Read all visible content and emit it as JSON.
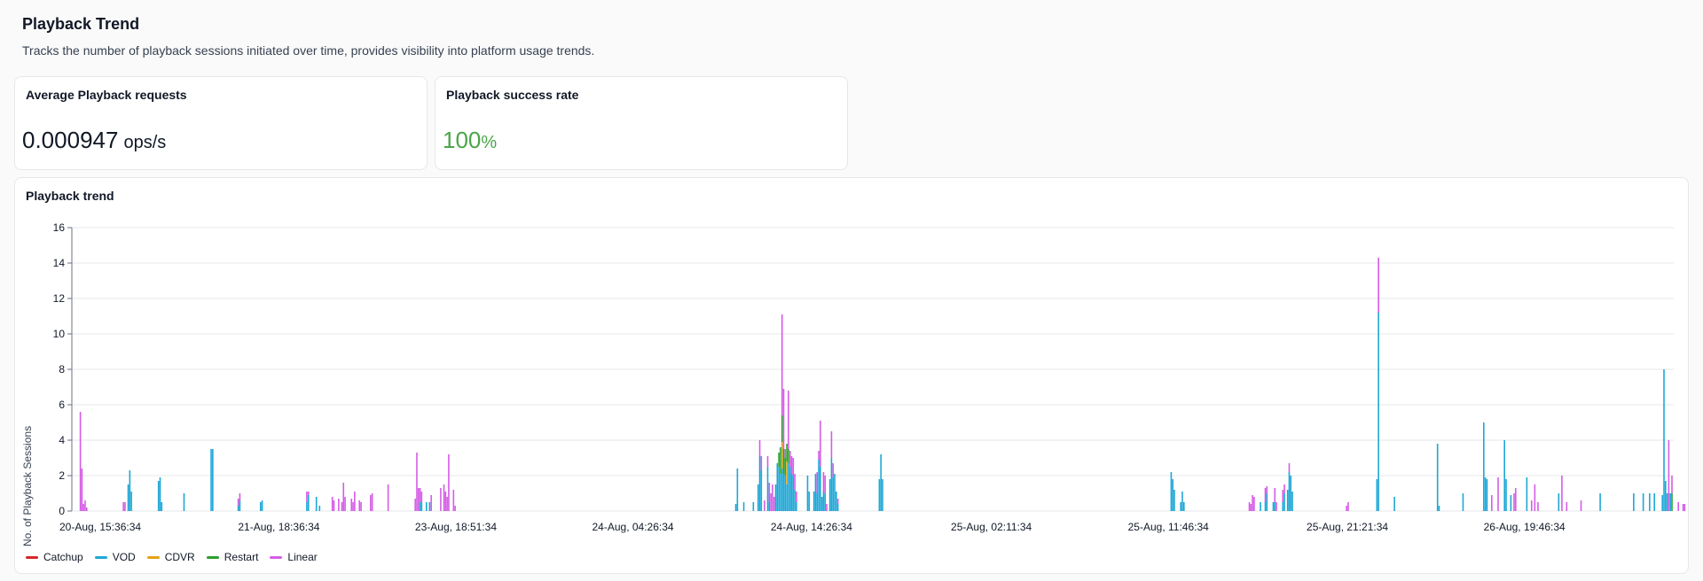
{
  "header": {
    "title": "Playback Trend",
    "subtitle": "Tracks the number of playback sessions initiated over time, provides visibility into platform usage trends."
  },
  "cards": {
    "avg": {
      "title": "Average Playback requests",
      "value": "0.000947",
      "unit": "ops/s"
    },
    "success": {
      "title": "Playback success rate",
      "value": "100",
      "unit": "%"
    }
  },
  "chart_card": {
    "title": "Playback trend"
  },
  "chart_data": {
    "type": "bar",
    "stacked": true,
    "ylabel": "No. of Playback Sessions",
    "xlabel": "",
    "ylim": [
      0,
      16
    ],
    "yticks": [
      0,
      2,
      4,
      6,
      8,
      10,
      12,
      14,
      16
    ],
    "xlim": [
      0,
      1000
    ],
    "grid": true,
    "legend": "bottom-left",
    "x_tick_labels": [
      {
        "x": 10,
        "label": "20-Aug, 15:36:34"
      },
      {
        "x": 122,
        "label": "21-Aug, 18:36:34"
      },
      {
        "x": 233,
        "label": "23-Aug, 18:51:34"
      },
      {
        "x": 344,
        "label": "24-Aug, 04:26:34"
      },
      {
        "x": 456,
        "label": "24-Aug, 14:26:34"
      },
      {
        "x": 569,
        "label": "25-Aug, 02:11:34"
      },
      {
        "x": 680,
        "label": "25-Aug, 11:46:34"
      },
      {
        "x": 792,
        "label": "25-Aug, 21:21:34"
      },
      {
        "x": 903,
        "label": "26-Aug, 19:46:34"
      }
    ],
    "series": [
      {
        "name": "Catchup",
        "color": "#d62728",
        "points": []
      },
      {
        "name": "VOD",
        "color": "#1ea7d6",
        "points": [
          [
            32,
            1.5
          ],
          [
            33,
            2.3
          ],
          [
            34,
            1.1
          ],
          [
            51,
            1.7
          ],
          [
            52,
            1.9
          ],
          [
            53,
            0.5
          ],
          [
            67,
            1.0
          ],
          [
            84,
            3.5
          ],
          [
            85,
            3.5
          ],
          [
            101,
            0.3
          ],
          [
            102,
            0.6
          ],
          [
            115,
            0.5
          ],
          [
            116,
            0.6
          ],
          [
            144,
            0.5
          ],
          [
            145,
            0.9
          ],
          [
            150,
            0.8
          ],
          [
            152,
            0.3
          ],
          [
            215,
            0.5
          ],
          [
            216,
            0.5
          ],
          [
            219,
            0.5
          ],
          [
            221,
            0.5
          ],
          [
            413,
            0.4
          ],
          [
            414,
            2.4
          ],
          [
            418,
            0.5
          ],
          [
            424,
            0.5
          ],
          [
            427,
            1.5
          ],
          [
            428,
            3.1
          ],
          [
            429,
            2.3
          ],
          [
            433,
            2.5
          ],
          [
            434,
            0.5
          ],
          [
            438,
            1.5
          ],
          [
            439,
            2.7
          ],
          [
            440,
            2.5
          ],
          [
            441,
            2.1
          ],
          [
            442,
            2.4
          ],
          [
            443,
            2.1
          ],
          [
            444,
            2.0
          ],
          [
            445,
            1.5
          ],
          [
            446,
            2.7
          ],
          [
            447,
            2.5
          ],
          [
            448,
            2.1
          ],
          [
            449,
            2.0
          ],
          [
            450,
            1.2
          ],
          [
            451,
            0.5
          ],
          [
            458,
            2.0
          ],
          [
            459,
            1.1
          ],
          [
            462,
            1.1
          ],
          [
            463,
            2.1
          ],
          [
            464,
            1.0
          ],
          [
            465,
            2.9
          ],
          [
            466,
            2.5
          ],
          [
            467,
            0.8
          ],
          [
            468,
            1.1
          ],
          [
            469,
            1.0
          ],
          [
            472,
            1.8
          ],
          [
            473,
            3.0
          ],
          [
            474,
            1.9
          ],
          [
            475,
            2.1
          ],
          [
            476,
            1.1
          ],
          [
            477,
            0.4
          ],
          [
            503,
            1.8
          ],
          [
            504,
            3.2
          ],
          [
            505,
            1.8
          ],
          [
            686,
            2.2
          ],
          [
            687,
            1.8
          ],
          [
            688,
            1.2
          ],
          [
            692,
            0.5
          ],
          [
            693,
            1.1
          ],
          [
            694,
            0.5
          ],
          [
            742,
            0.5
          ],
          [
            745,
            0.5
          ],
          [
            746,
            1.0
          ],
          [
            750,
            0.5
          ],
          [
            751,
            0.5
          ],
          [
            756,
            0.5
          ],
          [
            757,
            1.0
          ],
          [
            759,
            1.2
          ],
          [
            760,
            2.2
          ],
          [
            761,
            2.0
          ],
          [
            762,
            1.1
          ],
          [
            815,
            1.8
          ],
          [
            816,
            11.2
          ],
          [
            826,
            0.8
          ],
          [
            853,
            3.8
          ],
          [
            854,
            0.3
          ],
          [
            869,
            1.0
          ],
          [
            882,
            5.0
          ],
          [
            883,
            1.9
          ],
          [
            884,
            1.8
          ],
          [
            895,
            4.0
          ],
          [
            896,
            1.8
          ],
          [
            899,
            0.9
          ],
          [
            909,
            1.9
          ],
          [
            929,
            1.0
          ],
          [
            955,
            1.0
          ],
          [
            976,
            1.0
          ],
          [
            982,
            1.0
          ],
          [
            986,
            1.0
          ],
          [
            989,
            1.0
          ],
          [
            994,
            0.9
          ],
          [
            995,
            8.0
          ],
          [
            996,
            1.7
          ],
          [
            997,
            1.0
          ],
          [
            999,
            1.0
          ]
        ]
      },
      {
        "name": "CDVR",
        "color": "#e3a312",
        "points": [
          [
            442,
            1.5
          ],
          [
            445,
            1.3
          ]
        ]
      },
      {
        "name": "Restart",
        "color": "#2ca02c",
        "points": [
          [
            440,
            0.8
          ],
          [
            441,
            1.5
          ],
          [
            442,
            1.5
          ],
          [
            443,
            1.4
          ],
          [
            444,
            1.0
          ],
          [
            445,
            1.0
          ],
          [
            446,
            0.8
          ],
          [
            1000,
            1.0
          ]
        ]
      },
      {
        "name": "Linear",
        "color": "#d55ce6",
        "points": [
          [
            2,
            5.6
          ],
          [
            3,
            2.4
          ],
          [
            4,
            0.4
          ],
          [
            5,
            0.6
          ],
          [
            6,
            0.2
          ],
          [
            29,
            0.5
          ],
          [
            30,
            0.5
          ],
          [
            101,
            0.4
          ],
          [
            102,
            0.4
          ],
          [
            144,
            0.6
          ],
          [
            145,
            0.2
          ],
          [
            160,
            0.8
          ],
          [
            161,
            0.6
          ],
          [
            164,
            0.7
          ],
          [
            166,
            0.5
          ],
          [
            167,
            1.6
          ],
          [
            168,
            0.8
          ],
          [
            172,
            0.7
          ],
          [
            173,
            0.5
          ],
          [
            174,
            1.1
          ],
          [
            177,
            0.6
          ],
          [
            178,
            0.5
          ],
          [
            184,
            0.9
          ],
          [
            185,
            1.0
          ],
          [
            195,
            1.5
          ],
          [
            212,
            0.7
          ],
          [
            213,
            3.3
          ],
          [
            214,
            1.3
          ],
          [
            215,
            0.8
          ],
          [
            216,
            0.6
          ],
          [
            222,
            0.9
          ],
          [
            228,
            1.3
          ],
          [
            230,
            1.5
          ],
          [
            231,
            1.1
          ],
          [
            232,
            0.8
          ],
          [
            233,
            3.2
          ],
          [
            236,
            1.2
          ],
          [
            237,
            0.3
          ],
          [
            428,
            0.9
          ],
          [
            429,
            0.8
          ],
          [
            431,
            0.6
          ],
          [
            433,
            0.6
          ],
          [
            434,
            1.1
          ],
          [
            435,
            1.0
          ],
          [
            436,
            1.5
          ],
          [
            437,
            0.8
          ],
          [
            442,
            5.7
          ],
          [
            443,
            3.4
          ],
          [
            444,
            0.5
          ],
          [
            446,
            3.3
          ],
          [
            447,
            0.9
          ],
          [
            448,
            1.0
          ],
          [
            449,
            1.0
          ],
          [
            450,
            0.9
          ],
          [
            451,
            0.6
          ],
          [
            464,
            1.2
          ],
          [
            465,
            0.5
          ],
          [
            466,
            2.6
          ],
          [
            468,
            1.1
          ],
          [
            469,
            1.0
          ],
          [
            470,
            0.4
          ],
          [
            473,
            1.5
          ],
          [
            474,
            0.8
          ],
          [
            477,
            0.3
          ],
          [
            735,
            0.5
          ],
          [
            736,
            0.4
          ],
          [
            737,
            0.9
          ],
          [
            738,
            0.8
          ],
          [
            745,
            0.8
          ],
          [
            746,
            0.4
          ],
          [
            751,
            0.8
          ],
          [
            752,
            0.5
          ],
          [
            756,
            0.7
          ],
          [
            757,
            0.5
          ],
          [
            760,
            0.5
          ],
          [
            796,
            0.3
          ],
          [
            797,
            0.5
          ],
          [
            816,
            3.1
          ],
          [
            887,
            0.9
          ],
          [
            891,
            1.9
          ],
          [
            901,
            1.0
          ],
          [
            902,
            1.3
          ],
          [
            912,
            0.6
          ],
          [
            914,
            1.5
          ],
          [
            916,
            0.5
          ],
          [
            931,
            2.0
          ],
          [
            934,
            0.5
          ],
          [
            943,
            0.6
          ],
          [
            1004,
            0.5
          ],
          [
            1007,
            0.4
          ],
          [
            1008,
            0.4
          ],
          [
            998,
            4.0
          ],
          [
            1000,
            1.0
          ]
        ]
      }
    ]
  }
}
